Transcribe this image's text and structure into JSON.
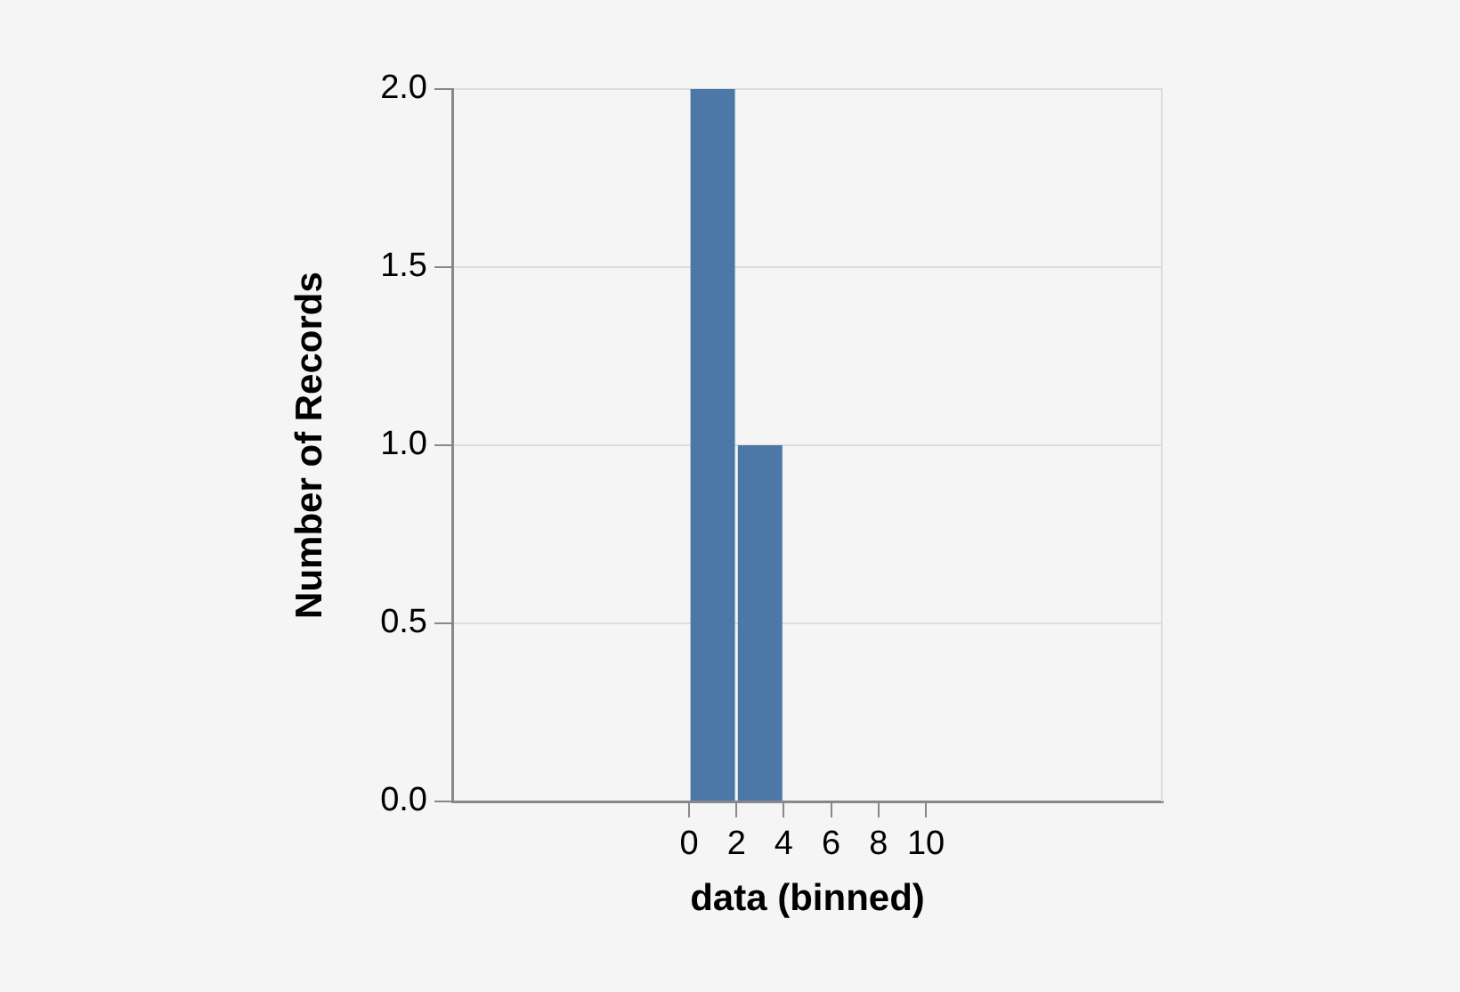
{
  "chart_data": {
    "type": "histogram",
    "xlabel": "data (binned)",
    "ylabel": "Number of Records",
    "bins": [
      0,
      2,
      4
    ],
    "values": [
      2,
      1
    ],
    "color": "#4c78a8",
    "xlim": [
      -10,
      20
    ],
    "xticks": [
      0,
      2,
      4,
      6,
      8,
      10
    ],
    "ylim": [
      0,
      2
    ],
    "yticks": [
      {
        "value": 0,
        "label": "0.0"
      },
      0.5,
      {
        "value": 1,
        "label": "1.0"
      },
      1.5,
      {
        "value": 2,
        "label": "2.0"
      }
    ],
    "grid": "y"
  }
}
